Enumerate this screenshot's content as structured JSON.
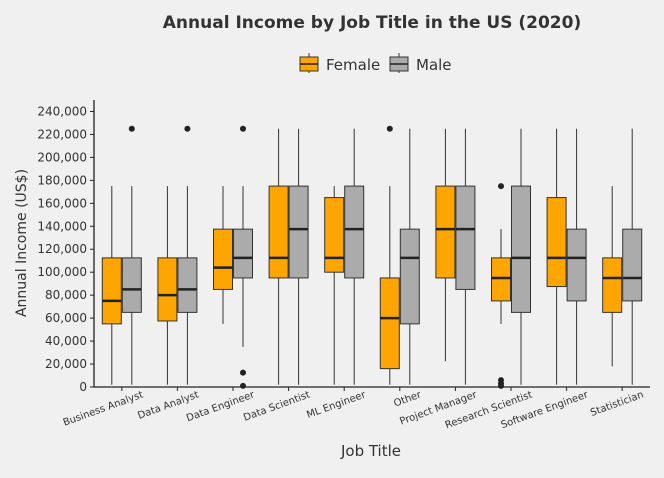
{
  "chart_data": {
    "type": "boxplot",
    "title": "Annual Income by Job Title in the US (2020)",
    "xlabel": "Job Title",
    "ylabel": "Annual Income (US$)",
    "ylim": [
      0,
      250000
    ],
    "yticks": [
      0,
      20000,
      40000,
      60000,
      80000,
      100000,
      120000,
      140000,
      160000,
      180000,
      200000,
      220000,
      240000
    ],
    "ytick_labels": [
      "0",
      "20,000",
      "40,000",
      "60,000",
      "80,000",
      "100,000",
      "120,000",
      "140,000",
      "160,000",
      "180,000",
      "200,000",
      "220,000",
      "240,000"
    ],
    "grid": false,
    "legend_position": "top",
    "categories": [
      "Business Analyst",
      "Data Analyst",
      "Data Engineer",
      "Data Scientist",
      "ML Engineer",
      "Other",
      "Project Manager",
      "Research Scientist",
      "Software Engineer",
      "Statistician"
    ],
    "series": [
      {
        "name": "Female",
        "color": "#FFA500",
        "boxes": [
          {
            "whisker_low": 2000,
            "q1": 55000,
            "median": 75000,
            "q3": 112500,
            "whisker_high": 175000,
            "outliers": []
          },
          {
            "whisker_low": 2000,
            "q1": 57500,
            "median": 80000,
            "q3": 112500,
            "whisker_high": 175000,
            "outliers": []
          },
          {
            "whisker_low": 55000,
            "q1": 85000,
            "median": 104000,
            "q3": 137500,
            "whisker_high": 175000,
            "outliers": []
          },
          {
            "whisker_low": 2000,
            "q1": 95000,
            "median": 112500,
            "q3": 175000,
            "whisker_high": 225000,
            "outliers": []
          },
          {
            "whisker_low": 2000,
            "q1": 100000,
            "median": 112500,
            "q3": 165000,
            "whisker_high": 175000,
            "outliers": []
          },
          {
            "whisker_low": 2000,
            "q1": 16000,
            "median": 60000,
            "q3": 95000,
            "whisker_high": 175000,
            "outliers": [
              225000
            ]
          },
          {
            "whisker_low": 22500,
            "q1": 95000,
            "median": 137500,
            "q3": 175000,
            "whisker_high": 225000,
            "outliers": []
          },
          {
            "whisker_low": 55000,
            "q1": 75000,
            "median": 95000,
            "q3": 112500,
            "whisker_high": 137500,
            "outliers": [
              175000,
              6000,
              3000,
              1000
            ]
          },
          {
            "whisker_low": 2000,
            "q1": 87500,
            "median": 112500,
            "q3": 165000,
            "whisker_high": 225000,
            "outliers": []
          },
          {
            "whisker_low": 18000,
            "q1": 65000,
            "median": 95000,
            "q3": 112500,
            "whisker_high": 175000,
            "outliers": []
          }
        ]
      },
      {
        "name": "Male",
        "color": "#ABABAB",
        "boxes": [
          {
            "whisker_low": 2000,
            "q1": 65000,
            "median": 85000,
            "q3": 112500,
            "whisker_high": 175000,
            "outliers": [
              225000
            ]
          },
          {
            "whisker_low": 2000,
            "q1": 65000,
            "median": 85000,
            "q3": 112500,
            "whisker_high": 175000,
            "outliers": [
              225000
            ]
          },
          {
            "whisker_low": 35000,
            "q1": 95000,
            "median": 112500,
            "q3": 137500,
            "whisker_high": 175000,
            "outliers": [
              225000,
              12500,
              1000
            ]
          },
          {
            "whisker_low": 2000,
            "q1": 95000,
            "median": 137500,
            "q3": 175000,
            "whisker_high": 225000,
            "outliers": []
          },
          {
            "whisker_low": 2000,
            "q1": 95000,
            "median": 137500,
            "q3": 175000,
            "whisker_high": 225000,
            "outliers": []
          },
          {
            "whisker_low": 2000,
            "q1": 55000,
            "median": 112500,
            "q3": 137500,
            "whisker_high": 225000,
            "outliers": []
          },
          {
            "whisker_low": 2000,
            "q1": 85000,
            "median": 137500,
            "q3": 175000,
            "whisker_high": 225000,
            "outliers": []
          },
          {
            "whisker_low": 2000,
            "q1": 65000,
            "median": 112500,
            "q3": 175000,
            "whisker_high": 225000,
            "outliers": []
          },
          {
            "whisker_low": 2000,
            "q1": 75000,
            "median": 112500,
            "q3": 137500,
            "whisker_high": 225000,
            "outliers": []
          },
          {
            "whisker_low": 2000,
            "q1": 75000,
            "median": 95000,
            "q3": 137500,
            "whisker_high": 225000,
            "outliers": []
          }
        ]
      }
    ]
  }
}
